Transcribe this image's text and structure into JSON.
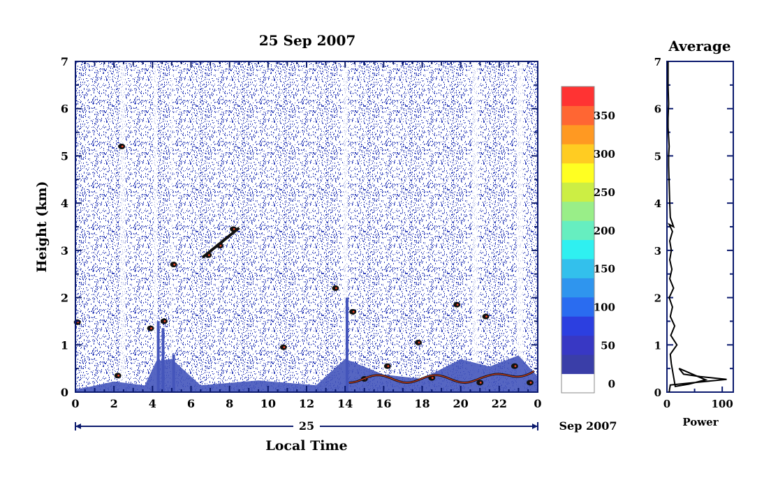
{
  "colors": {
    "axis": "#0b1a6e",
    "text": "#000000",
    "noise": "#3344bb",
    "ground": "#4455bb",
    "layer": "#111111",
    "echo": "#ee4422",
    "background": "#ffffff",
    "colorbar": [
      "#ffffff",
      "#3a3ea8",
      "#3838c4",
      "#2c3fe0",
      "#2a6cf0",
      "#2f95ee",
      "#33c0ec",
      "#2ff0f0",
      "#66eec0",
      "#99ee88",
      "#ccee44",
      "#ffff22",
      "#ffcc22",
      "#ff9922",
      "#ff6633",
      "#ff3333"
    ]
  },
  "main_chart": {
    "title": "25 Sep 2007",
    "type": "heatmap",
    "xlabel": "Local Time",
    "ylabel": "Height (km)",
    "xlim": [
      0,
      24
    ],
    "ylim": [
      0,
      7
    ],
    "x_ticks": [
      "0",
      "2",
      "4",
      "6",
      "8",
      "10",
      "12",
      "14",
      "16",
      "18",
      "20",
      "22",
      "0"
    ],
    "y_ticks": [
      "0",
      "1",
      "2",
      "3",
      "4",
      "5",
      "6",
      "7"
    ],
    "date_day": "25",
    "date_month_year": "Sep 2007"
  },
  "colorbar": {
    "min": 0,
    "max": 375,
    "step": 25,
    "tick_labels": [
      "0",
      "50",
      "100",
      "150",
      "200",
      "250",
      "300",
      "350"
    ],
    "tick_values": [
      0,
      50,
      100,
      150,
      200,
      250,
      300,
      350
    ]
  },
  "profile_chart": {
    "title": "Average",
    "type": "line",
    "xlabel": "Power",
    "xlim": [
      0,
      120
    ],
    "ylim": [
      0,
      7
    ],
    "x_ticks": [
      "0",
      "100"
    ],
    "y_ticks": [
      "0",
      "1",
      "2",
      "3",
      "4",
      "5",
      "6",
      "7"
    ]
  },
  "chart_data": [
    {
      "type": "heatmap",
      "title": "25 Sep 2007",
      "xlabel": "Local Time",
      "ylabel": "Height (km)",
      "x_range": [
        0,
        24
      ],
      "y_range": [
        0,
        7
      ],
      "value_range": [
        0,
        375
      ],
      "features": {
        "ground_clutter_top_km": [
          [
            0,
            0.08
          ],
          [
            0.5,
            0.12
          ],
          [
            2.0,
            0.2
          ],
          [
            3.6,
            0.12
          ],
          [
            4.2,
            0.65
          ],
          [
            5.0,
            0.7
          ],
          [
            6.5,
            0.15
          ],
          [
            9.5,
            0.25
          ],
          [
            12.5,
            0.15
          ],
          [
            14.0,
            0.7
          ],
          [
            16.0,
            0.4
          ],
          [
            18.0,
            0.3
          ],
          [
            20.0,
            0.7
          ],
          [
            21.5,
            0.55
          ],
          [
            23.0,
            0.8
          ],
          [
            24.0,
            0.35
          ]
        ],
        "dark_patches": [
          {
            "t": 0.1,
            "h": 1.48
          },
          {
            "t": 2.4,
            "h": 5.2
          },
          {
            "t": 2.2,
            "h": 0.35
          },
          {
            "t": 3.9,
            "h": 1.35
          },
          {
            "t": 4.6,
            "h": 1.5
          },
          {
            "t": 5.1,
            "h": 2.7
          },
          {
            "t": 6.9,
            "h": 2.9
          },
          {
            "t": 7.5,
            "h": 3.1
          },
          {
            "t": 8.2,
            "h": 3.45
          },
          {
            "t": 10.8,
            "h": 0.95
          },
          {
            "t": 13.5,
            "h": 2.2
          },
          {
            "t": 14.4,
            "h": 1.7
          },
          {
            "t": 17.8,
            "h": 1.05
          },
          {
            "t": 19.8,
            "h": 1.85
          },
          {
            "t": 21.3,
            "h": 1.6
          },
          {
            "t": 15.0,
            "h": 0.28
          },
          {
            "t": 16.2,
            "h": 0.55
          },
          {
            "t": 18.5,
            "h": 0.3
          },
          {
            "t": 21.0,
            "h": 0.2
          },
          {
            "t": 22.8,
            "h": 0.55
          },
          {
            "t": 23.6,
            "h": 0.2
          }
        ]
      }
    },
    {
      "type": "line",
      "title": "Average",
      "xlabel": "Power",
      "ylabel": "",
      "xlim": [
        0,
        120
      ],
      "ylim": [
        0,
        7
      ],
      "x": [
        4,
        5,
        6,
        108,
        60,
        30,
        22,
        70,
        40,
        15,
        8,
        6,
        18,
        7,
        14,
        6,
        10,
        4,
        12,
        5,
        9,
        5,
        8,
        5,
        10,
        4,
        12,
        6,
        5,
        4,
        3,
        3,
        4,
        3,
        2,
        2,
        3,
        2,
        2
      ],
      "y": [
        0.0,
        0.08,
        0.15,
        0.27,
        0.33,
        0.38,
        0.5,
        0.26,
        0.17,
        0.12,
        0.6,
        0.8,
        1.0,
        1.2,
        1.4,
        1.6,
        1.8,
        2.0,
        2.2,
        2.4,
        2.6,
        2.8,
        3.0,
        3.2,
        3.4,
        3.55,
        3.5,
        3.7,
        4.0,
        4.4,
        4.8,
        5.0,
        5.2,
        5.4,
        5.6,
        5.8,
        6.1,
        6.5,
        7.0
      ]
    }
  ]
}
